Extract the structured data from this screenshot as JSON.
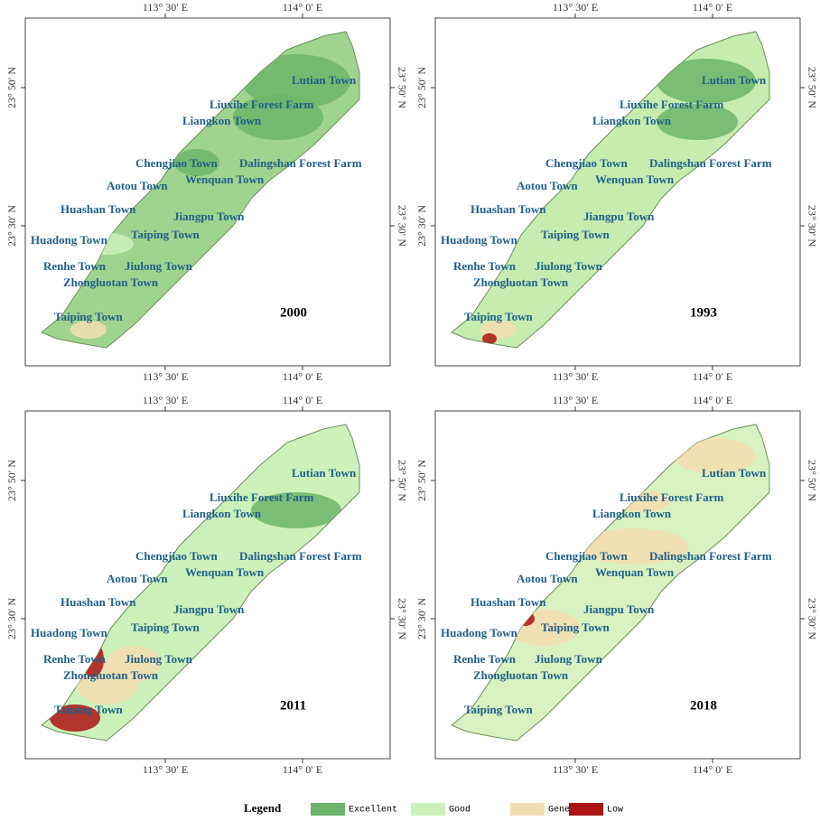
{
  "panels": [
    {
      "year": "2000"
    },
    {
      "year": "1993"
    },
    {
      "year": "2011"
    },
    {
      "year": "2018"
    }
  ],
  "axes": {
    "lon": [
      "113° 30′ E",
      "114° 0′ E"
    ],
    "lat": [
      "23° 50′ N",
      "23° 30′ N"
    ]
  },
  "towns": [
    "Lutian Town",
    "Liuxihe Forest Farm",
    "Liangkon Town",
    "Chengjiao Town",
    "Dalingshan Forest Farm",
    "Aotou Town",
    "Wenquan Town",
    "Huashan Town",
    "Jiangpu Town",
    "Huadong Town",
    "Taiping Town",
    "Renhe Town",
    "Jiulong Town",
    "Zhongluotan Town",
    "Taiping Town"
  ],
  "legend": {
    "title": "Legend",
    "items": [
      {
        "label": "Excellent",
        "color": "#6cb56a"
      },
      {
        "label": "Good",
        "color": "#cdf1bb"
      },
      {
        "label": "General",
        "color": "#f3ddb0"
      },
      {
        "label": "Low",
        "color": "#ad1414"
      }
    ]
  }
}
